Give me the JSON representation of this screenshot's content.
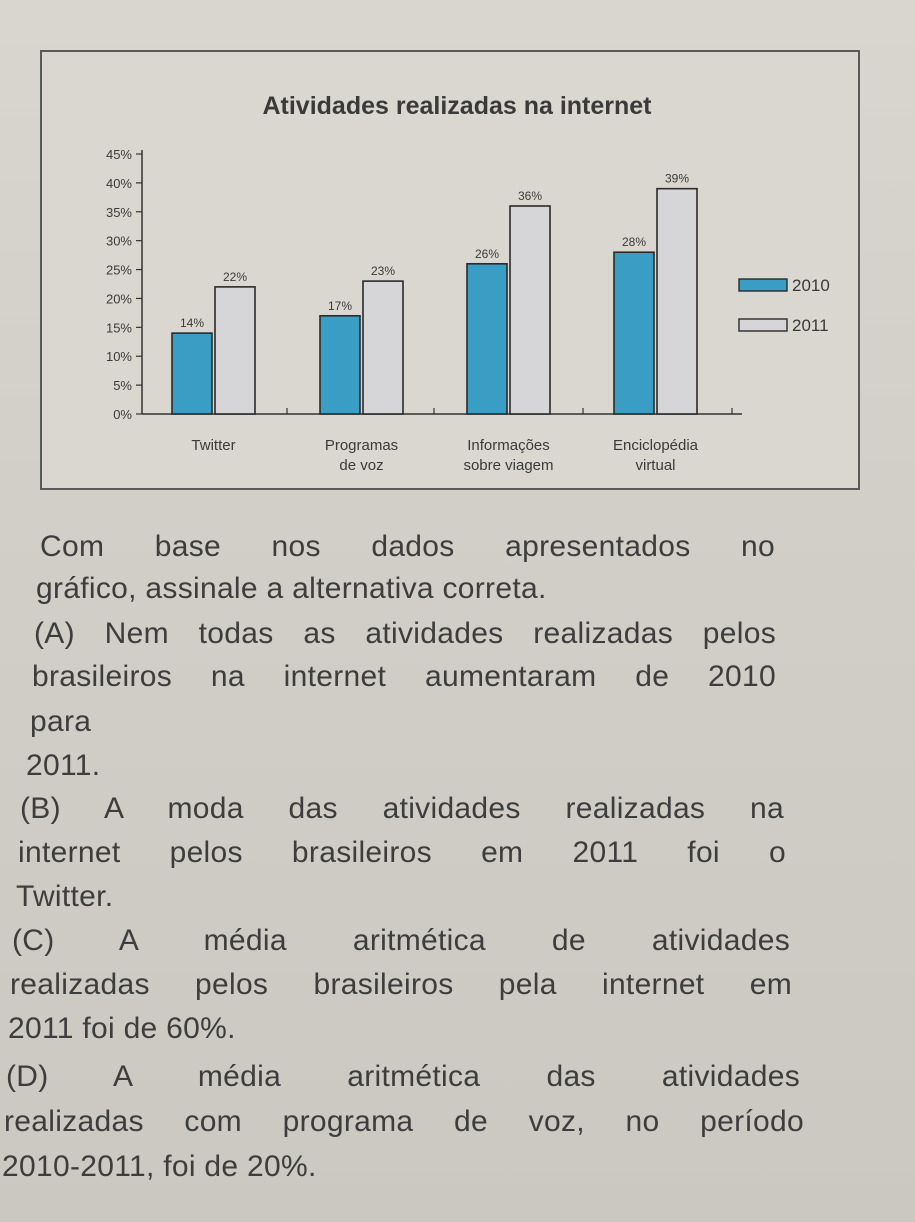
{
  "chart_data": {
    "type": "bar",
    "title": "Atividades realizadas na internet",
    "categories": [
      [
        "Twitter"
      ],
      [
        "Programas",
        "de voz"
      ],
      [
        "Informações",
        "sobre viagem"
      ],
      [
        "Enciclopédia",
        "virtual"
      ]
    ],
    "series": [
      {
        "name": "2010",
        "values": [
          14,
          17,
          26,
          28
        ],
        "labels": [
          "14%",
          "17%",
          "26%",
          "28%"
        ],
        "color": "#3a9ec4"
      },
      {
        "name": "2011",
        "values": [
          22,
          23,
          36,
          39
        ],
        "labels": [
          "22%",
          "23%",
          "36%",
          "39%"
        ],
        "color": "#d6d6d8"
      }
    ],
    "y_ticks": [
      "0%",
      "5%",
      "10%",
      "15%",
      "20%",
      "25%",
      "30%",
      "35%",
      "40%",
      "45%"
    ],
    "ylim": [
      0,
      45
    ],
    "legend_position": "right",
    "grid": false
  },
  "question": {
    "intro": [
      "Com base nos dados apresentados no",
      "gráfico, assinale a alternativa correta."
    ],
    "option_a": [
      "(A) Nem todas as atividades realizadas pelos",
      "brasileiros na internet aumentaram de 2010",
      "para",
      "2011."
    ],
    "option_b": [
      "(B) A moda das atividades realizadas na",
      "internet pelos brasileiros em 2011 foi o",
      "Twitter."
    ],
    "option_c": [
      "(C) A média aritmética de atividades",
      "realizadas pelos brasileiros pela internet em",
      "2011 foi de 60%."
    ],
    "option_d": [
      "(D) A média aritmética das atividades",
      "realizadas com programa de voz, no período",
      "2010-2011, foi de 20%."
    ]
  }
}
